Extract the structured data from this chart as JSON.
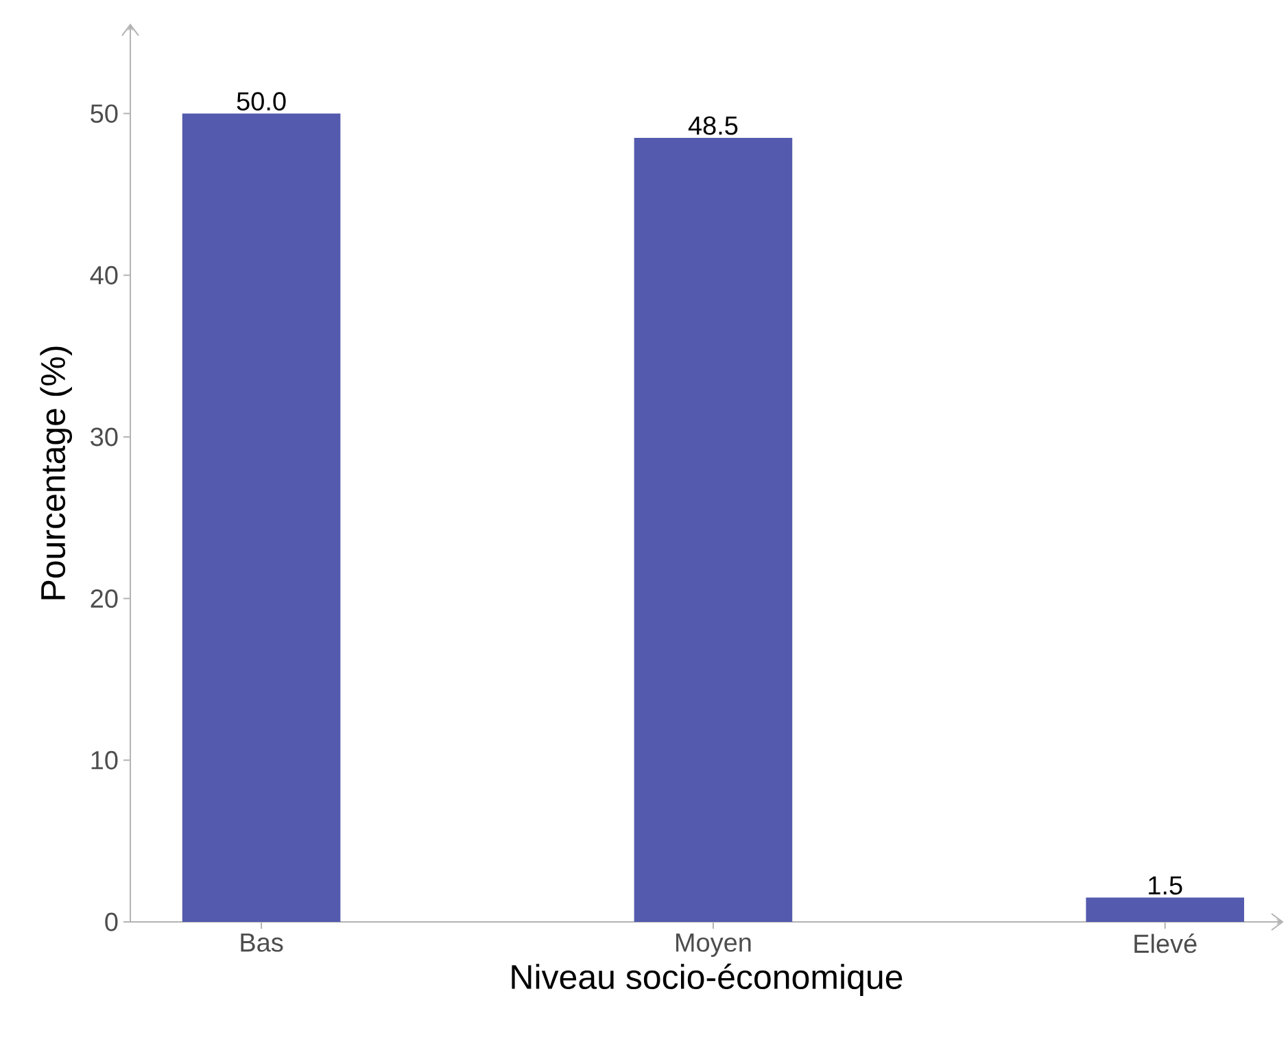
{
  "chart_data": {
    "type": "bar",
    "xlabel": "Niveau socio-économique",
    "ylabel": "Pourcentage (%)",
    "categories": [
      "Bas",
      "Moyen",
      "Elevé"
    ],
    "values": [
      50.0,
      48.5,
      1.5
    ],
    "value_labels": [
      "50.0",
      "48.5",
      "1.5"
    ],
    "color": "#545aad",
    "ylim": [
      0,
      55.5
    ],
    "yticks": [
      0,
      10,
      20,
      30,
      40,
      50
    ],
    "grid": false
  }
}
